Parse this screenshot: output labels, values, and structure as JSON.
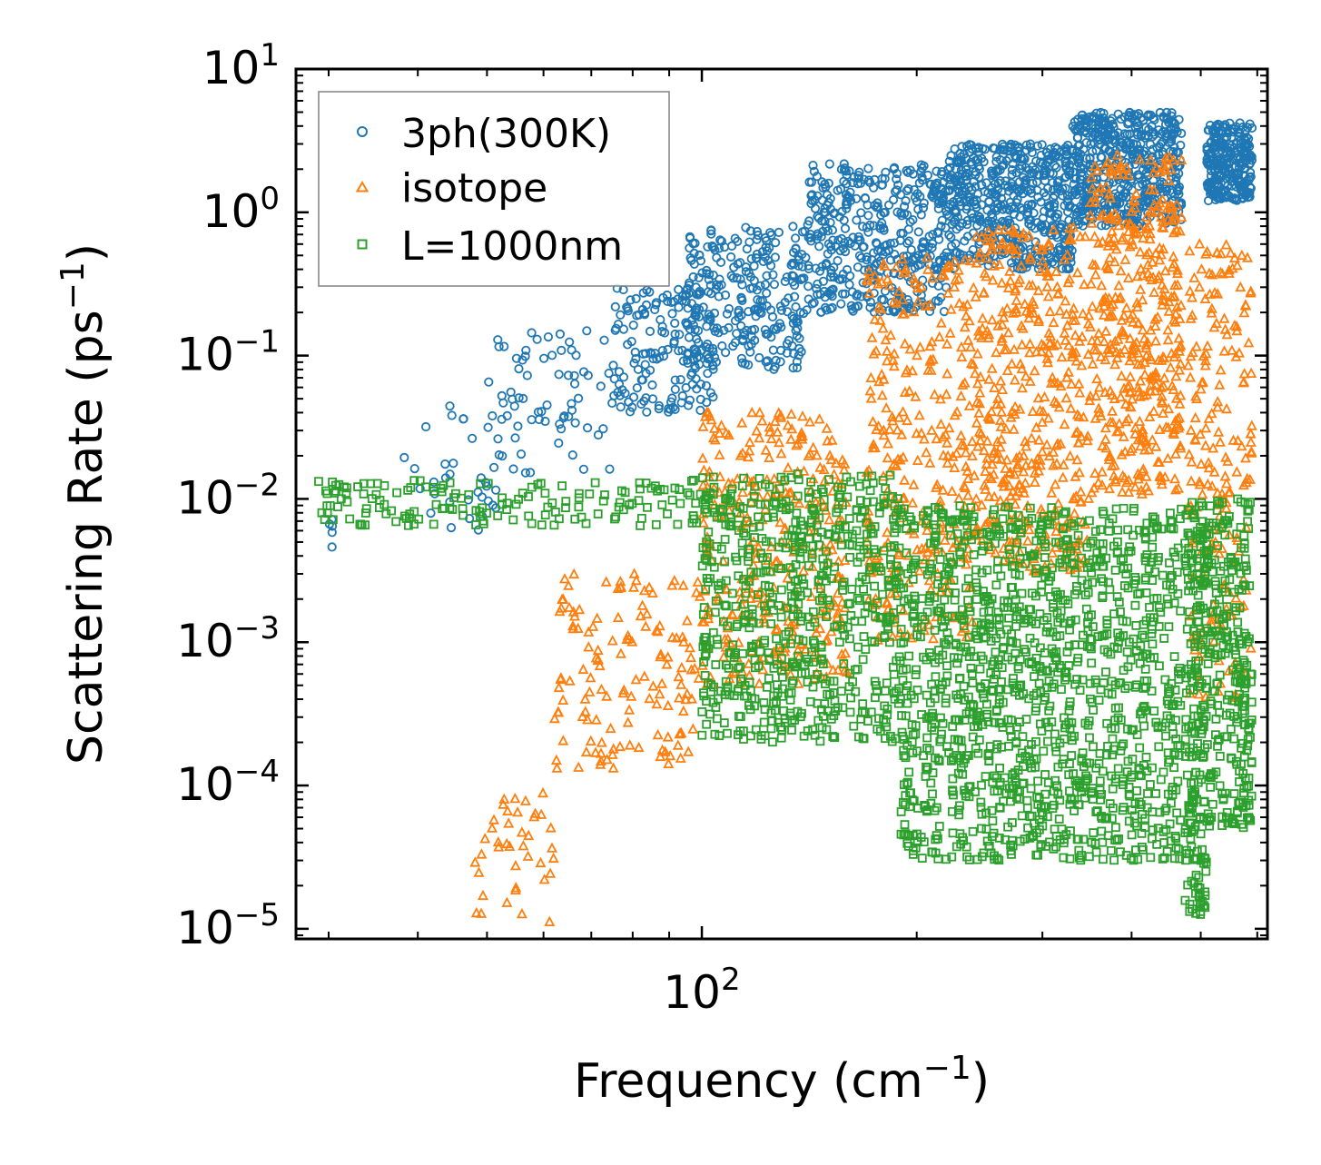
{
  "chart_data": {
    "type": "scatter",
    "title": "",
    "xlabel": "Frequency (cm",
    "xlabel_sup": "−1",
    "xlabel_close": ")",
    "ylabel": "Scattering Rate (ps",
    "ylabel_sup": "−1",
    "ylabel_close": ")",
    "x_scale": "log",
    "y_scale": "log",
    "xlim": [
      27,
      620
    ],
    "ylim": [
      8.5e-06,
      10
    ],
    "x_ticks": [
      {
        "value": 100,
        "base": "10",
        "exp": "2"
      }
    ],
    "y_ticks": [
      {
        "value": 10,
        "base": "10",
        "exp": "1"
      },
      {
        "value": 1,
        "base": "10",
        "exp": "0"
      },
      {
        "value": 0.1,
        "base": "10",
        "exp": "−1"
      },
      {
        "value": 0.01,
        "base": "10",
        "exp": "−2"
      },
      {
        "value": 0.001,
        "base": "10",
        "exp": "−3"
      },
      {
        "value": 0.0001,
        "base": "10",
        "exp": "−4"
      },
      {
        "value": 1e-05,
        "base": "10",
        "exp": "−5"
      }
    ],
    "legend_position": "top-left",
    "series": [
      {
        "name": "3ph(300K)",
        "color": "#1f77b4",
        "marker": "circle",
        "regions": [
          {
            "x": [
              30,
              30.5
            ],
            "y": [
              0.0038,
              0.0072
            ],
            "n": 5
          },
          {
            "x": [
              38,
              55
            ],
            "y": [
              0.006,
              0.05
            ],
            "n": 35
          },
          {
            "x": [
              50,
              75
            ],
            "y": [
              0.015,
              0.15
            ],
            "n": 70
          },
          {
            "x": [
              75,
              105
            ],
            "y": [
              0.04,
              0.3
            ],
            "n": 160
          },
          {
            "x": [
              95,
              140
            ],
            "y": [
              0.08,
              0.8
            ],
            "n": 260
          },
          {
            "x": [
              140,
              220
            ],
            "y": [
              0.2,
              2.2
            ],
            "n": 420
          },
          {
            "x": [
              220,
              330
            ],
            "y": [
              0.4,
              3.0
            ],
            "n": 520
          },
          {
            "x": [
              330,
              470
            ],
            "y": [
              0.8,
              5.0
            ],
            "n": 520
          },
          {
            "x": [
              510,
              590
            ],
            "y": [
              1.2,
              4.2
            ],
            "n": 260
          }
        ]
      },
      {
        "name": "isotope",
        "color": "#ff7f0e",
        "marker": "triangle",
        "regions": [
          {
            "x": [
              48,
              62
            ],
            "y": [
              1.1e-05,
              9e-05
            ],
            "n": 40
          },
          {
            "x": [
              62,
              100
            ],
            "y": [
              0.00013,
              0.003
            ],
            "n": 140
          },
          {
            "x": [
              100,
              160
            ],
            "y": [
              0.0005,
              0.04
            ],
            "n": 320
          },
          {
            "x": [
              170,
              240
            ],
            "y": [
              0.001,
              0.5
            ],
            "n": 300
          },
          {
            "x": [
              240,
              350
            ],
            "y": [
              0.003,
              0.8
            ],
            "n": 420
          },
          {
            "x": [
              350,
              470
            ],
            "y": [
              0.01,
              2.5
            ],
            "n": 420
          },
          {
            "x": [
              480,
              590
            ],
            "y": [
              0.0004,
              0.6
            ],
            "n": 200
          }
        ]
      },
      {
        "name": "L=1000nm",
        "color": "#2ca02c",
        "marker": "square",
        "regions": [
          {
            "x": [
              29,
              100
            ],
            "y": [
              0.0065,
              0.0135
            ],
            "n": 160
          },
          {
            "x": [
              100,
              190
            ],
            "y": [
              0.0002,
              0.015
            ],
            "n": 650
          },
          {
            "x": [
              190,
              470
            ],
            "y": [
              3e-05,
              0.009
            ],
            "n": 1300
          },
          {
            "x": [
              475,
              510
            ],
            "y": [
              1.2e-05,
              0.01
            ],
            "n": 220
          },
          {
            "x": [
              510,
              590
            ],
            "y": [
              5e-05,
              0.01
            ],
            "n": 260
          }
        ]
      }
    ]
  }
}
